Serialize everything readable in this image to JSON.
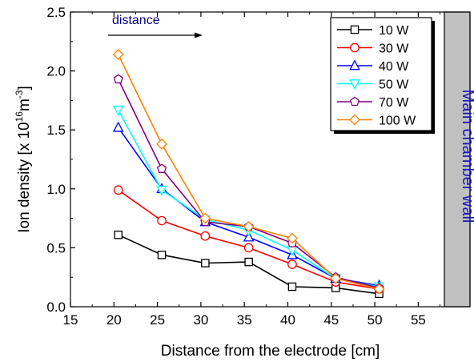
{
  "chart_data": {
    "type": "line",
    "xlabel": "Distance from the electrode [cm]",
    "ylabel": {
      "prefix": "Ion density [x 10",
      "exp1": "16",
      "mid": "m",
      "exp2": "-3",
      "suffix": "]"
    },
    "xlim": [
      15,
      58
    ],
    "ylim": [
      0,
      2.5
    ],
    "xticks": [
      "15",
      "20",
      "25",
      "30",
      "35",
      "40",
      "45",
      "50",
      "55"
    ],
    "yticks": [
      "0.0",
      "0.5",
      "1.0",
      "1.5",
      "2.0",
      "2.5"
    ],
    "x": [
      20.5,
      25.5,
      30.5,
      35.5,
      40.5,
      45.5,
      50.5
    ],
    "series": [
      {
        "name": "10 W",
        "color": "#000000",
        "marker": "square",
        "values": [
          0.61,
          0.44,
          0.37,
          0.38,
          0.17,
          0.16,
          0.11
        ]
      },
      {
        "name": "30 W",
        "color": "#ff0000",
        "marker": "circle",
        "values": [
          0.99,
          0.73,
          0.6,
          0.5,
          0.36,
          0.21,
          0.15
        ]
      },
      {
        "name": "40 W",
        "color": "#0000ff",
        "marker": "triangle-up",
        "values": [
          1.52,
          1.0,
          0.72,
          0.59,
          0.44,
          0.24,
          0.18
        ]
      },
      {
        "name": "50 W",
        "color": "#00ffff",
        "marker": "triangle-down",
        "values": [
          1.67,
          0.99,
          0.74,
          0.65,
          0.48,
          0.24,
          0.17
        ]
      },
      {
        "name": "70 W",
        "color": "#800080",
        "marker": "pentagon",
        "values": [
          1.93,
          1.17,
          0.72,
          0.68,
          0.54,
          0.25,
          0.16
        ]
      },
      {
        "name": "100 W",
        "color": "#ff8000",
        "marker": "diamond",
        "values": [
          2.14,
          1.38,
          0.75,
          0.68,
          0.58,
          0.24,
          0.15
        ]
      }
    ],
    "legend_position": "top-right",
    "annotations": {
      "arrow_label": "distance",
      "wall_label": "Main chamber wall"
    },
    "wall_color": "#c0c0c0"
  }
}
